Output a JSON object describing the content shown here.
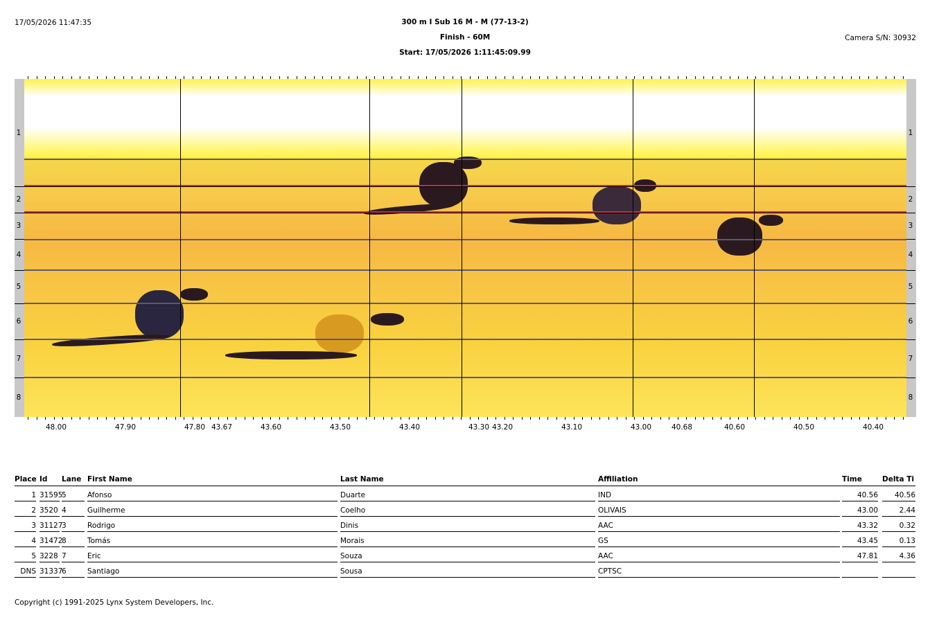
{
  "header": {
    "printed": "17/05/2026 11:47:35",
    "title": "300 m I Sub 16 M - M (77-13-2)",
    "subtitle": "Finish - 60M",
    "start": "Start: 17/05/2026 1:11:45:09.99",
    "camera": "Camera S/N: 30932"
  },
  "lanes": [
    "1",
    "2",
    "3",
    "4",
    "5",
    "6",
    "7",
    "8"
  ],
  "axis": [
    "48.00",
    "47.90",
    "47.80",
    "43.67",
    "43.60",
    "43.50",
    "43.40",
    "43.30",
    "43.20",
    "43.10",
    "43.00",
    "40.68",
    "40.60",
    "40.50",
    "40.40"
  ],
  "table": {
    "columns": [
      "Place",
      "Id",
      "Lane",
      "First Name",
      "Last Name",
      "Affiliation",
      "Time",
      "Delta Ti"
    ],
    "rows": [
      [
        "1",
        "31595",
        "5",
        "Afonso",
        "Duarte",
        "IND",
        "40.56",
        "40.56"
      ],
      [
        "2",
        "3520",
        "4",
        "Guilherme",
        "Coelho",
        "OLIVAIS",
        "43.00",
        "2.44"
      ],
      [
        "3",
        "31127",
        "3",
        "Rodrigo",
        "Dinis",
        "AAC",
        "43.32",
        "0.32"
      ],
      [
        "4",
        "31472",
        "8",
        "Tomás",
        "Morais",
        "GS",
        "43.45",
        "0.13"
      ],
      [
        "5",
        "3228",
        "7",
        "Eric",
        "Souza",
        "AAC",
        "47.81",
        "4.36"
      ],
      [
        "DNS",
        "31337",
        "6",
        "Santiago",
        "Sousa",
        "CPTSC"
      ]
    ]
  },
  "footer": "Copyright (c) 1991-2025 Lynx System Developers, Inc."
}
